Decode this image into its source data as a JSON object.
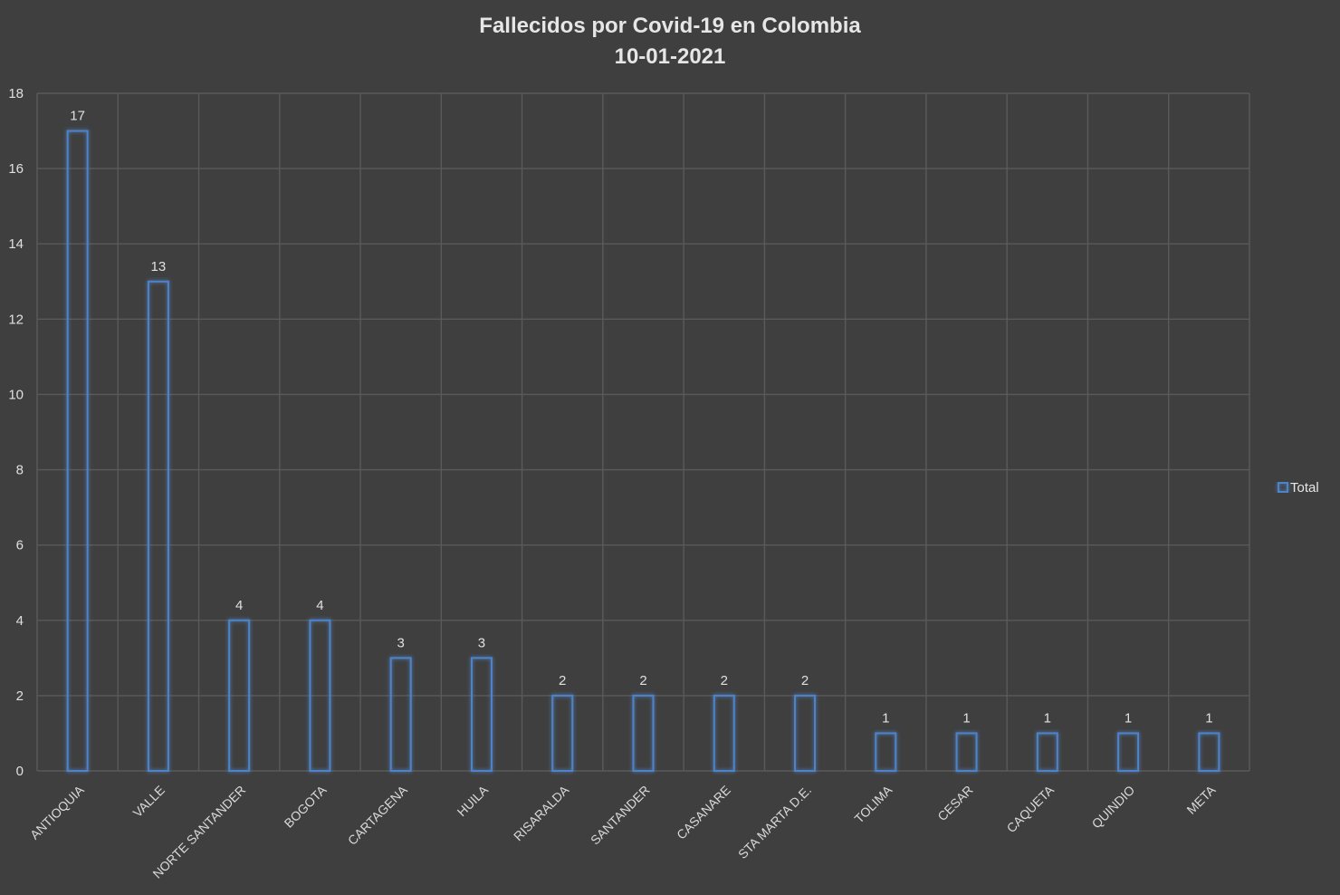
{
  "chart_data": {
    "type": "bar",
    "title": "Fallecidos por Covid-19 en Colombia",
    "subtitle": "10-01-2021",
    "categories": [
      "ANTIOQUIA",
      "VALLE",
      "NORTE SANTANDER",
      "BOGOTA",
      "CARTAGENA",
      "HUILA",
      "RISARALDA",
      "SANTANDER",
      "CASANARE",
      "STA MARTA D.E.",
      "TOLIMA",
      "CESAR",
      "CAQUETA",
      "QUINDIO",
      "META"
    ],
    "series": [
      {
        "name": "Total",
        "values": [
          17,
          13,
          4,
          4,
          3,
          3,
          2,
          2,
          2,
          2,
          1,
          1,
          1,
          1,
          1
        ]
      }
    ],
    "ylim": [
      0,
      18
    ],
    "yticks": [
      0,
      2,
      4,
      6,
      8,
      10,
      12,
      14,
      16,
      18
    ],
    "xlabel": "",
    "ylabel": "",
    "grid": true,
    "legend_position": "right",
    "colors": {
      "background": "#3f3f3f",
      "bar_outline": "#4f83c8",
      "gridline": "#5a5a5a",
      "text": "#e0e0e0"
    }
  }
}
